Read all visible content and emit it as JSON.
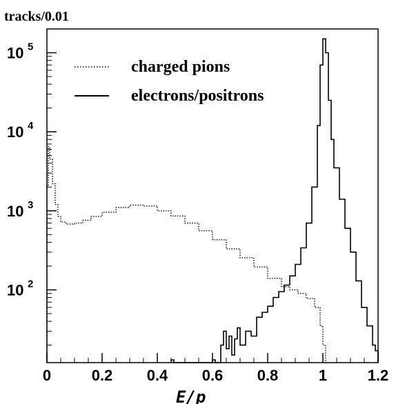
{
  "chart_data": {
    "type": "line",
    "step": true,
    "ylabel": "tracks/0.01",
    "xlabel": "E/p",
    "xlim": [
      0,
      1.2
    ],
    "ylim": [
      12,
      200000
    ],
    "yscale": "log",
    "grid": false,
    "legend_position": "top-left",
    "x_ticks": [
      "0",
      "0.2",
      "0.4",
      "0.6",
      "0.8",
      "1",
      "1.2"
    ],
    "y_ticks": [
      {
        "base": "10",
        "exp": "2",
        "value": 100
      },
      {
        "base": "10",
        "exp": "3",
        "value": 1000
      },
      {
        "base": "10",
        "exp": "4",
        "value": 10000
      },
      {
        "base": "10",
        "exp": "5",
        "value": 100000
      }
    ],
    "series": [
      {
        "name": "charged pions",
        "style": "dotted",
        "points": [
          [
            0.0,
            2100
          ],
          [
            0.005,
            6500
          ],
          [
            0.01,
            4500
          ],
          [
            0.02,
            2200
          ],
          [
            0.03,
            1200
          ],
          [
            0.04,
            850
          ],
          [
            0.05,
            720
          ],
          [
            0.07,
            680
          ],
          [
            0.1,
            700
          ],
          [
            0.13,
            760
          ],
          [
            0.16,
            850
          ],
          [
            0.2,
            960
          ],
          [
            0.25,
            1100
          ],
          [
            0.3,
            1180
          ],
          [
            0.35,
            1150
          ],
          [
            0.4,
            1000
          ],
          [
            0.45,
            860
          ],
          [
            0.5,
            700
          ],
          [
            0.55,
            560
          ],
          [
            0.6,
            430
          ],
          [
            0.65,
            330
          ],
          [
            0.7,
            255
          ],
          [
            0.75,
            195
          ],
          [
            0.8,
            140
          ],
          [
            0.85,
            110
          ],
          [
            0.88,
            100
          ],
          [
            0.91,
            90
          ],
          [
            0.94,
            78
          ],
          [
            0.97,
            60
          ],
          [
            0.99,
            35
          ],
          [
            1.0,
            20
          ],
          [
            1.01,
            12
          ]
        ]
      },
      {
        "name": "electrons/positrons",
        "style": "solid",
        "points": [
          [
            0.45,
            13
          ],
          [
            0.46,
            12
          ],
          [
            0.6,
            13
          ],
          [
            0.61,
            12
          ],
          [
            0.63,
            20
          ],
          [
            0.64,
            30
          ],
          [
            0.65,
            18
          ],
          [
            0.66,
            26
          ],
          [
            0.67,
            15
          ],
          [
            0.68,
            24
          ],
          [
            0.69,
            33
          ],
          [
            0.7,
            20
          ],
          [
            0.72,
            30
          ],
          [
            0.74,
            26
          ],
          [
            0.76,
            45
          ],
          [
            0.78,
            52
          ],
          [
            0.8,
            62
          ],
          [
            0.82,
            80
          ],
          [
            0.84,
            95
          ],
          [
            0.86,
            115
          ],
          [
            0.88,
            150
          ],
          [
            0.9,
            210
          ],
          [
            0.92,
            340
          ],
          [
            0.94,
            700
          ],
          [
            0.96,
            2000
          ],
          [
            0.98,
            12000
          ],
          [
            0.99,
            70000
          ],
          [
            1.0,
            150000
          ],
          [
            1.01,
            100000
          ],
          [
            1.02,
            25000
          ],
          [
            1.03,
            8000
          ],
          [
            1.04,
            3500
          ],
          [
            1.06,
            1400
          ],
          [
            1.08,
            600
          ],
          [
            1.1,
            300
          ],
          [
            1.12,
            130
          ],
          [
            1.14,
            60
          ],
          [
            1.16,
            35
          ],
          [
            1.18,
            20
          ],
          [
            1.19,
            17
          ],
          [
            1.2,
            12
          ]
        ]
      }
    ]
  }
}
